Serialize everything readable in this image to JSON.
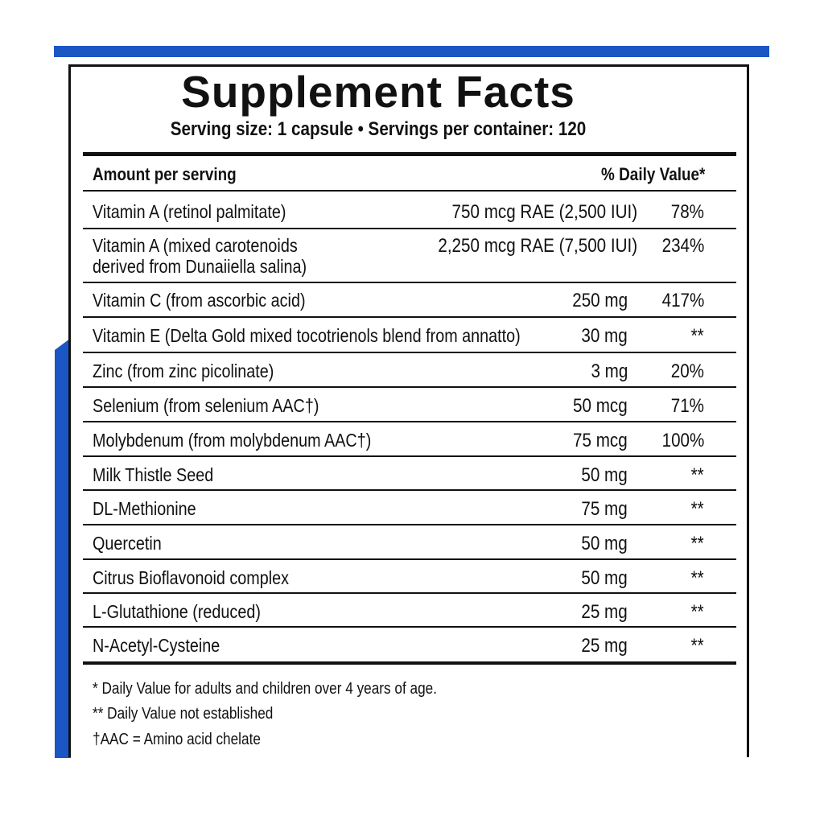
{
  "header": {
    "title": "Supplement Facts",
    "serving": "Serving size: 1 capsule • Servings per container: 120"
  },
  "table": {
    "columns": [
      "Amount per serving",
      "% Daily Value*"
    ],
    "rows": [
      [
        "Vitamin A (retinol palmitate)",
        "750 mcg RAE (2,500 IUI)",
        "78%"
      ],
      [
        "Vitamin A (mixed carotenoids\nderived from Dunaiiella salina)",
        "2,250 mcg RAE (7,500 IUI)",
        "234%"
      ],
      [
        "Vitamin C (from ascorbic acid)",
        "250 mg",
        "417%"
      ],
      [
        "Vitamin E (Delta Gold mixed tocotrienols blend from annatto)",
        "30 mg",
        "**"
      ],
      [
        "Zinc (from zinc picolinate)",
        "3 mg",
        "20%"
      ],
      [
        "Selenium (from selenium AAC†)",
        "50 mcg",
        "71%"
      ],
      [
        "Molybdenum (from molybdenum AAC†)",
        "75 mcg",
        "100%"
      ],
      [
        "Milk Thistle Seed",
        "50 mg",
        "**"
      ],
      [
        "DL-Methionine",
        "75 mg",
        "**"
      ],
      [
        "Quercetin",
        "50 mg",
        "**"
      ],
      [
        "Citrus Bioflavonoid complex",
        "50 mg",
        "**"
      ],
      [
        "L-Glutathione (reduced)",
        "25 mg",
        "**"
      ],
      [
        "N-Acetyl-Cysteine",
        "25 mg",
        "**"
      ]
    ]
  },
  "footnotes": [
    "* Daily Value for adults and children over 4 years of age.",
    "** Daily Value not established",
    "†AAC = Amino acid chelate"
  ]
}
